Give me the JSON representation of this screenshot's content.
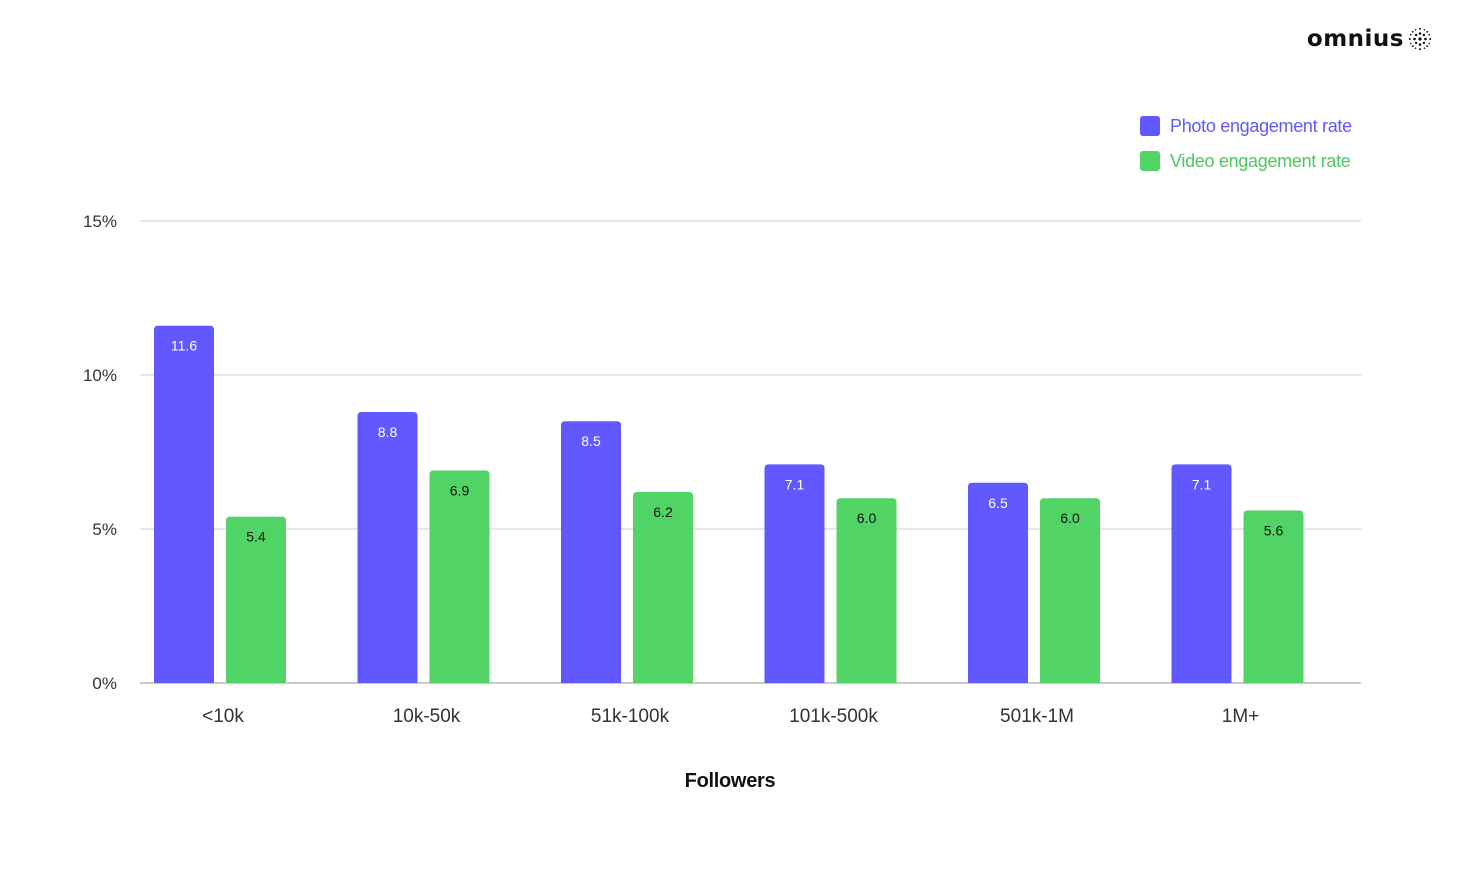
{
  "brand": {
    "name": "omnius",
    "icon": "dotted-sphere-icon"
  },
  "colors": {
    "photo": "#6159FF",
    "video": "#52D366",
    "grid": "#CCCCCC",
    "axis": "#999999"
  },
  "chart_data": {
    "type": "bar",
    "categories": [
      "<10k",
      "10k-50k",
      "51k-100k",
      "101k-500k",
      "501k-1M",
      "1M+"
    ],
    "series": [
      {
        "name": "Photo engagement rate",
        "values": [
          11.6,
          8.8,
          8.5,
          7.1,
          6.5,
          7.1
        ],
        "labels": [
          "11.6",
          "8.8",
          "8.5",
          "7.1",
          "6.5",
          "7.1"
        ]
      },
      {
        "name": "Video engagement rate",
        "values": [
          5.4,
          6.9,
          6.2,
          6.0,
          6.0,
          5.6
        ],
        "labels": [
          "5.4",
          "6.9",
          "6.2",
          "6.0",
          "6.0",
          "5.6"
        ]
      }
    ],
    "xlabel": "Followers",
    "ylabel": "",
    "ylim": [
      0,
      15
    ],
    "yticks": [
      "0%",
      "5%",
      "10%",
      "15%"
    ],
    "ytick_values": [
      0,
      5,
      10,
      15
    ],
    "grid": true,
    "legend_position": "top-right"
  }
}
